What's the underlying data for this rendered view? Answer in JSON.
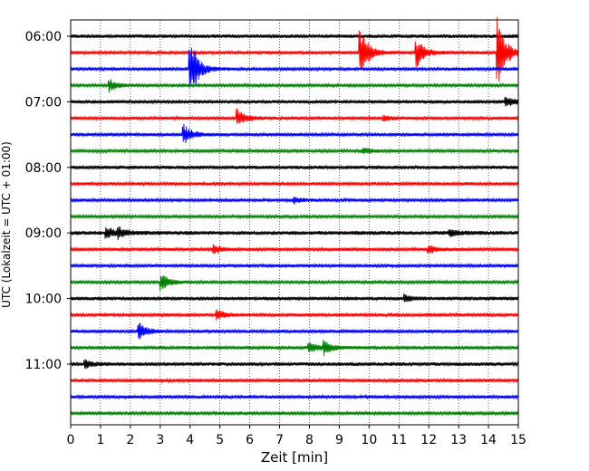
{
  "chart_data": {
    "type": "line",
    "title": "",
    "xlabel": "Zeit  [min]",
    "ylabel": "UTC (Lokalzeit = UTC + 01:00)",
    "xlim": [
      0,
      15
    ],
    "x_ticks": [
      0,
      1,
      2,
      3,
      4,
      5,
      6,
      7,
      8,
      9,
      10,
      11,
      12,
      13,
      14,
      15
    ],
    "grid": "vertical-dotted",
    "legend": "none",
    "y_tick_labels": [
      "06:00",
      "07:00",
      "08:00",
      "09:00",
      "10:00",
      "11:00"
    ],
    "colors": [
      "#000000",
      "#ff0000",
      "#0000ff",
      "#008000"
    ],
    "series": [
      {
        "start": "06:00",
        "amp": 2,
        "events": []
      },
      {
        "start": "06:15",
        "amp": 1.8,
        "events": [
          {
            "t": 9.7,
            "a": 28
          },
          {
            "t": 11.6,
            "a": 16
          },
          {
            "t": 14.3,
            "a": 40
          }
        ]
      },
      {
        "start": "06:30",
        "amp": 1.8,
        "events": [
          {
            "t": 4.0,
            "a": 34
          }
        ]
      },
      {
        "start": "06:45",
        "amp": 1.6,
        "events": [
          {
            "t": 1.3,
            "a": 7
          }
        ]
      },
      {
        "start": "07:00",
        "amp": 2,
        "events": [
          {
            "t": 14.6,
            "a": 5
          }
        ]
      },
      {
        "start": "07:15",
        "amp": 1.8,
        "events": [
          {
            "t": 5.6,
            "a": 10
          },
          {
            "t": 10.5,
            "a": 3
          }
        ]
      },
      {
        "start": "07:30",
        "amp": 1.8,
        "events": [
          {
            "t": 3.8,
            "a": 11
          }
        ]
      },
      {
        "start": "07:45",
        "amp": 1.6,
        "events": [
          {
            "t": 9.8,
            "a": 4
          }
        ]
      },
      {
        "start": "08:00",
        "amp": 2,
        "events": []
      },
      {
        "start": "08:15",
        "amp": 1.8,
        "events": []
      },
      {
        "start": "08:30",
        "amp": 1.8,
        "events": [
          {
            "t": 7.5,
            "a": 3
          }
        ]
      },
      {
        "start": "08:45",
        "amp": 1.6,
        "events": []
      },
      {
        "start": "09:00",
        "amp": 2.2,
        "events": [
          {
            "t": 1.2,
            "a": 6
          },
          {
            "t": 1.6,
            "a": 5
          },
          {
            "t": 12.7,
            "a": 4
          }
        ]
      },
      {
        "start": "09:15",
        "amp": 1.8,
        "events": [
          {
            "t": 4.8,
            "a": 5
          },
          {
            "t": 12.0,
            "a": 5
          }
        ]
      },
      {
        "start": "09:30",
        "amp": 1.8,
        "events": []
      },
      {
        "start": "09:45",
        "amp": 1.6,
        "events": [
          {
            "t": 3.05,
            "a": 9
          }
        ]
      },
      {
        "start": "10:00",
        "amp": 2,
        "events": [
          {
            "t": 11.2,
            "a": 4
          }
        ]
      },
      {
        "start": "10:15",
        "amp": 1.8,
        "events": [
          {
            "t": 4.9,
            "a": 6
          }
        ]
      },
      {
        "start": "10:30",
        "amp": 1.8,
        "events": [
          {
            "t": 2.3,
            "a": 9
          }
        ]
      },
      {
        "start": "10:45",
        "amp": 1.8,
        "events": [
          {
            "t": 8.0,
            "a": 6
          },
          {
            "t": 8.5,
            "a": 7
          }
        ]
      },
      {
        "start": "11:00",
        "amp": 2,
        "events": [
          {
            "t": 0.5,
            "a": 4
          }
        ]
      },
      {
        "start": "11:15",
        "amp": 1.8,
        "events": []
      },
      {
        "start": "11:30",
        "amp": 1.8,
        "events": []
      },
      {
        "start": "11:45",
        "amp": 1.6,
        "events": []
      }
    ]
  }
}
